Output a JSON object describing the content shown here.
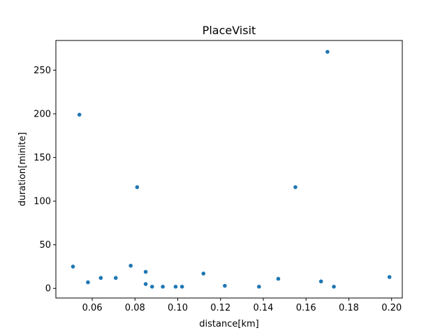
{
  "chart_data": {
    "type": "scatter",
    "title": "PlaceVisit",
    "xlabel": "distance[km]",
    "ylabel": "duration[minite]",
    "xlim": [
      0.043,
      0.205
    ],
    "ylim": [
      -11,
      284
    ],
    "x_ticks": [
      0.06,
      0.08,
      0.1,
      0.12,
      0.14,
      0.16,
      0.18,
      0.2
    ],
    "x_tick_labels": [
      "0.06",
      "0.08",
      "0.10",
      "0.12",
      "0.14",
      "0.16",
      "0.18",
      "0.20"
    ],
    "y_ticks": [
      0,
      50,
      100,
      150,
      200,
      250
    ],
    "y_tick_labels": [
      "0",
      "50",
      "100",
      "150",
      "200",
      "250"
    ],
    "grid": false,
    "marker_color": "#1f77b4",
    "series": [
      {
        "name": "",
        "points": [
          {
            "x": 0.051,
            "y": 25
          },
          {
            "x": 0.054,
            "y": 199
          },
          {
            "x": 0.058,
            "y": 7
          },
          {
            "x": 0.064,
            "y": 12
          },
          {
            "x": 0.071,
            "y": 12
          },
          {
            "x": 0.078,
            "y": 26
          },
          {
            "x": 0.081,
            "y": 116
          },
          {
            "x": 0.085,
            "y": 19
          },
          {
            "x": 0.085,
            "y": 5
          },
          {
            "x": 0.088,
            "y": 2
          },
          {
            "x": 0.093,
            "y": 2
          },
          {
            "x": 0.099,
            "y": 2
          },
          {
            "x": 0.102,
            "y": 2
          },
          {
            "x": 0.112,
            "y": 17
          },
          {
            "x": 0.122,
            "y": 3
          },
          {
            "x": 0.138,
            "y": 2
          },
          {
            "x": 0.147,
            "y": 11
          },
          {
            "x": 0.155,
            "y": 116
          },
          {
            "x": 0.167,
            "y": 8
          },
          {
            "x": 0.17,
            "y": 271
          },
          {
            "x": 0.173,
            "y": 2
          },
          {
            "x": 0.199,
            "y": 13
          }
        ]
      }
    ]
  }
}
